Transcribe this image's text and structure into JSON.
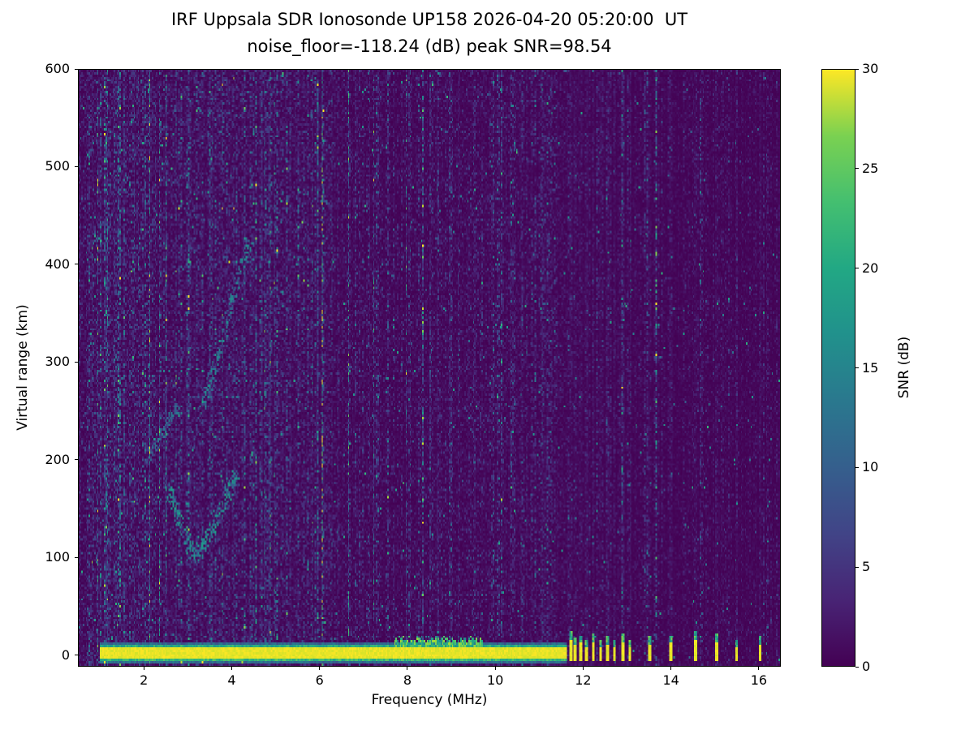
{
  "figure": {
    "title_line1": "IRF Uppsala SDR Ionosonde UP158 2026-04-20 05:20:00  UT",
    "title_line2": "noise_floor=-118.24 (dB) peak SNR=98.54",
    "xlabel": "Frequency (MHz)",
    "ylabel": "Virtual range (km)",
    "colorbar_label": "SNR (dB)"
  },
  "chart_data": {
    "type": "heatmap",
    "title": "IRF Uppsala SDR Ionosonde UP158 2026-04-20 05:20:00  UT",
    "subtitle": "noise_floor=-118.24 (dB) peak SNR=98.54",
    "station": "UP158",
    "timestamp_ut": "2026-04-20 05:20:00",
    "noise_floor_db": -118.24,
    "peak_snr_db": 98.54,
    "xlabel": "Frequency (MHz)",
    "ylabel": "Virtual range (km)",
    "colorbar_label": "SNR (dB)",
    "colormap": "viridis",
    "x_range": [
      0.5,
      16.5
    ],
    "y_range": [
      -12,
      600
    ],
    "x_ticks": [
      2,
      4,
      6,
      8,
      10,
      12,
      14,
      16
    ],
    "y_ticks": [
      0,
      100,
      200,
      300,
      400,
      500,
      600
    ],
    "colorbar_ticks": [
      0,
      5,
      10,
      15,
      20,
      25,
      30
    ],
    "colorbar_range": [
      0,
      30
    ],
    "grid": false,
    "features": {
      "ground_band": {
        "freq_start": 0.98,
        "freq_end": 11.62,
        "y_center": 1,
        "half_width_km": 6.5,
        "fringe_km": 5,
        "thick_freq_start": 7.7,
        "thick_freq_end": 9.7,
        "thick_extra_km": 10,
        "snr_db": 30
      },
      "rfi_bars": {
        "freqs_mhz": [
          11.7,
          11.82,
          11.95,
          12.08,
          12.22,
          12.38,
          12.55,
          12.72,
          12.9,
          13.05,
          13.5,
          14.0,
          14.55,
          15.05,
          15.5,
          16.05
        ],
        "heights_km": [
          24,
          16,
          20,
          14,
          22,
          15,
          19,
          14,
          21,
          15,
          18,
          20,
          24,
          21,
          15,
          19
        ],
        "snr_db": 30
      },
      "noise_regions": [
        {
          "f0": 0.5,
          "f1": 2.3,
          "gain": 1.8
        },
        {
          "f0": 2.3,
          "f1": 6.2,
          "gain": 1.35
        },
        {
          "f0": 6.2,
          "f1": 11.6,
          "gain": 1.0
        },
        {
          "f0": 11.6,
          "f1": 16.5,
          "gain": 0.55
        }
      ],
      "vertical_streaks": [
        [
          1.12,
          2.6
        ],
        [
          1.3,
          1.8
        ],
        [
          1.55,
          2.2
        ],
        [
          1.75,
          1.6
        ],
        [
          2.1,
          1.5
        ],
        [
          2.5,
          1.3
        ],
        [
          3.05,
          1.6
        ],
        [
          3.5,
          1.2
        ],
        [
          4.68,
          2.0
        ],
        [
          4.85,
          1.4
        ],
        [
          5.3,
          1.2
        ],
        [
          5.95,
          1.3
        ],
        [
          7.15,
          1.1
        ],
        [
          8.5,
          1.5
        ],
        [
          8.95,
          1.4
        ],
        [
          9.55,
          1.2
        ],
        [
          10.4,
          1.1
        ],
        [
          11.1,
          1.0
        ]
      ],
      "echo_traces": [
        {
          "points": [
            [
              2.55,
              170
            ],
            [
              2.85,
              130
            ],
            [
              3.15,
              100
            ],
            [
              3.45,
              120
            ],
            [
              3.8,
              155
            ],
            [
              4.1,
              185
            ]
          ],
          "spread_km": 16,
          "density": 340,
          "snr_db": 14
        },
        {
          "points": [
            [
              3.3,
              250
            ],
            [
              3.7,
              310
            ],
            [
              4.05,
              370
            ],
            [
              4.45,
              430
            ]
          ],
          "spread_km": 12,
          "density": 200,
          "snr_db": 12
        },
        {
          "points": [
            [
              2.1,
              205
            ],
            [
              2.45,
              230
            ],
            [
              2.8,
              255
            ]
          ],
          "spread_km": 12,
          "density": 120,
          "snr_db": 10
        }
      ]
    }
  }
}
